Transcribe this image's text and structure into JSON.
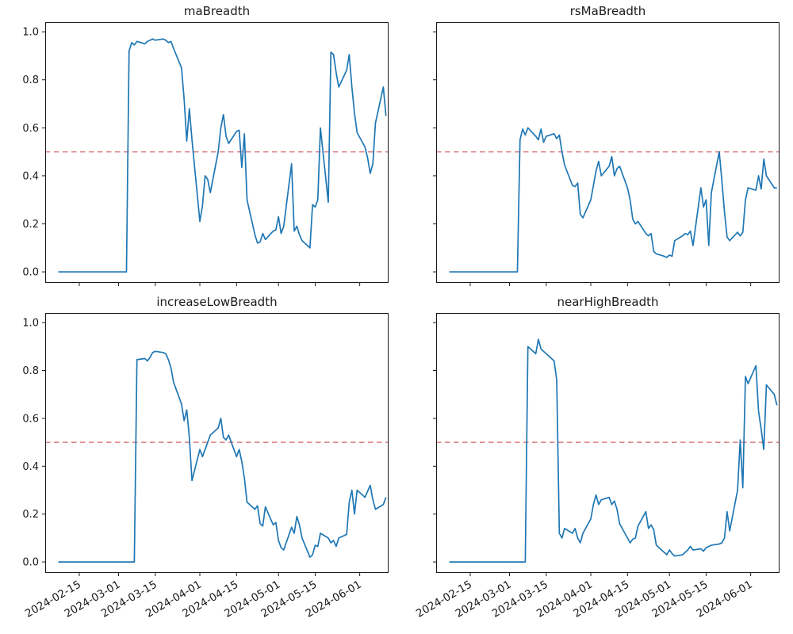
{
  "figure": {
    "background": "#ffffff",
    "text_color": "#1a1a1a"
  },
  "chart_data": {
    "type": "line",
    "layout": "2x2 subplots, shared axes style",
    "grid": false,
    "legend": null,
    "line_color": "#1f77b4",
    "threshold": {
      "value": 0.5,
      "style": "dashed",
      "color": "#d97b7d"
    },
    "ylim": [
      -0.046,
      1.04
    ],
    "xlim": [
      "2024-02-02",
      "2024-06-12"
    ],
    "yticks": {
      "values": [
        0.0,
        0.2,
        0.4,
        0.6,
        0.8,
        1.0
      ],
      "labels": [
        "0.0",
        "0.2",
        "0.4",
        "0.6",
        "0.8",
        "1.0"
      ]
    },
    "xticks": {
      "labels": [
        "2024-02-15",
        "2024-03-01",
        "2024-03-15",
        "2024-04-01",
        "2024-04-15",
        "2024-05-01",
        "2024-05-15",
        "2024-06-01"
      ]
    },
    "x": [
      "2024-02-07",
      "2024-02-08",
      "2024-02-09",
      "2024-02-12",
      "2024-02-13",
      "2024-02-14",
      "2024-02-15",
      "2024-02-16",
      "2024-02-19",
      "2024-02-20",
      "2024-02-21",
      "2024-02-22",
      "2024-02-23",
      "2024-02-26",
      "2024-02-27",
      "2024-02-28",
      "2024-02-29",
      "2024-03-01",
      "2024-03-04",
      "2024-03-05",
      "2024-03-06",
      "2024-03-07",
      "2024-03-08",
      "2024-03-11",
      "2024-03-12",
      "2024-03-13",
      "2024-03-14",
      "2024-03-15",
      "2024-03-18",
      "2024-03-19",
      "2024-03-20",
      "2024-03-21",
      "2024-03-22",
      "2024-03-25",
      "2024-03-26",
      "2024-03-27",
      "2024-03-28",
      "2024-03-29",
      "2024-04-01",
      "2024-04-02",
      "2024-04-03",
      "2024-04-04",
      "2024-04-05",
      "2024-04-08",
      "2024-04-09",
      "2024-04-10",
      "2024-04-11",
      "2024-04-12",
      "2024-04-15",
      "2024-04-16",
      "2024-04-17",
      "2024-04-18",
      "2024-04-19",
      "2024-04-22",
      "2024-04-23",
      "2024-04-24",
      "2024-04-25",
      "2024-04-26",
      "2024-04-29",
      "2024-04-30",
      "2024-05-01",
      "2024-05-02",
      "2024-05-03",
      "2024-05-06",
      "2024-05-07",
      "2024-05-08",
      "2024-05-09",
      "2024-05-10",
      "2024-05-13",
      "2024-05-14",
      "2024-05-15",
      "2024-05-16",
      "2024-05-17",
      "2024-05-20",
      "2024-05-21",
      "2024-05-22",
      "2024-05-23",
      "2024-05-24",
      "2024-05-27",
      "2024-05-28",
      "2024-05-29",
      "2024-05-30",
      "2024-05-31",
      "2024-06-03",
      "2024-06-04",
      "2024-06-05",
      "2024-06-06",
      "2024-06-07",
      "2024-06-10",
      "2024-06-11"
    ],
    "series": [
      {
        "name": "maBreadth",
        "values": [
          0,
          0,
          0,
          0,
          0,
          0,
          0,
          0,
          0,
          0,
          0,
          0,
          0,
          0,
          0,
          0,
          0,
          0,
          0,
          0.92,
          0.955,
          0.945,
          0.96,
          0.95,
          0.96,
          0.965,
          0.97,
          0.965,
          0.97,
          0.965,
          0.955,
          0.96,
          0.93,
          0.85,
          0.72,
          0.545,
          0.68,
          0.55,
          0.21,
          0.275,
          0.4,
          0.385,
          0.33,
          0.5,
          0.6,
          0.655,
          0.565,
          0.535,
          0.585,
          0.59,
          0.435,
          0.575,
          0.3,
          0.155,
          0.12,
          0.125,
          0.16,
          0.135,
          0.17,
          0.175,
          0.23,
          0.16,
          0.19,
          0.45,
          0.17,
          0.19,
          0.155,
          0.13,
          0.1,
          0.28,
          0.27,
          0.3,
          0.6,
          0.29,
          0.915,
          0.905,
          0.83,
          0.77,
          0.84,
          0.905,
          0.77,
          0.66,
          0.58,
          0.52,
          0.475,
          0.41,
          0.45,
          0.62,
          0.77,
          0.65
        ]
      },
      {
        "name": "rsMaBreadth",
        "values": [
          0,
          0,
          0,
          0,
          0,
          0,
          0,
          0,
          0,
          0,
          0,
          0,
          0,
          0,
          0,
          0,
          0,
          0,
          0,
          0.55,
          0.595,
          0.57,
          0.6,
          0.565,
          0.55,
          0.595,
          0.54,
          0.565,
          0.575,
          0.555,
          0.57,
          0.5,
          0.445,
          0.36,
          0.355,
          0.37,
          0.24,
          0.225,
          0.3,
          0.36,
          0.42,
          0.46,
          0.4,
          0.44,
          0.48,
          0.4,
          0.43,
          0.44,
          0.35,
          0.3,
          0.22,
          0.2,
          0.21,
          0.16,
          0.15,
          0.16,
          0.085,
          0.075,
          0.065,
          0.06,
          0.07,
          0.065,
          0.13,
          0.15,
          0.16,
          0.155,
          0.17,
          0.11,
          0.35,
          0.27,
          0.3,
          0.11,
          0.33,
          0.5,
          0.38,
          0.25,
          0.145,
          0.13,
          0.165,
          0.15,
          0.165,
          0.3,
          0.35,
          0.34,
          0.4,
          0.345,
          0.47,
          0.4,
          0.35,
          0.35
        ]
      },
      {
        "name": "increaseLowBreadth",
        "values": [
          0,
          0,
          0,
          0,
          0,
          0,
          0,
          0,
          0,
          0,
          0,
          0,
          0,
          0,
          0,
          0,
          0,
          0,
          0,
          0,
          0,
          0,
          0.845,
          0.85,
          0.84,
          0.855,
          0.875,
          0.88,
          0.875,
          0.87,
          0.845,
          0.81,
          0.75,
          0.66,
          0.59,
          0.635,
          0.52,
          0.34,
          0.47,
          0.44,
          0.47,
          0.5,
          0.53,
          0.56,
          0.6,
          0.52,
          0.51,
          0.53,
          0.44,
          0.47,
          0.42,
          0.35,
          0.25,
          0.22,
          0.235,
          0.16,
          0.15,
          0.23,
          0.155,
          0.165,
          0.09,
          0.06,
          0.05,
          0.145,
          0.12,
          0.19,
          0.155,
          0.1,
          0.02,
          0.03,
          0.07,
          0.065,
          0.12,
          0.1,
          0.08,
          0.09,
          0.065,
          0.1,
          0.115,
          0.25,
          0.3,
          0.2,
          0.3,
          0.27,
          0.295,
          0.32,
          0.26,
          0.22,
          0.24,
          0.27
        ]
      },
      {
        "name": "nearHighBreadth",
        "values": [
          0,
          0,
          0,
          0,
          0,
          0,
          0,
          0,
          0,
          0,
          0,
          0,
          0,
          0,
          0,
          0,
          0,
          0,
          0,
          0,
          0,
          0,
          0.9,
          0.87,
          0.93,
          0.89,
          0.88,
          0.87,
          0.84,
          0.76,
          0.12,
          0.1,
          0.14,
          0.12,
          0.14,
          0.1,
          0.08,
          0.12,
          0.18,
          0.24,
          0.28,
          0.24,
          0.26,
          0.27,
          0.24,
          0.255,
          0.22,
          0.16,
          0.1,
          0.08,
          0.095,
          0.1,
          0.15,
          0.21,
          0.14,
          0.155,
          0.135,
          0.07,
          0.04,
          0.03,
          0.05,
          0.035,
          0.025,
          0.03,
          0.04,
          0.05,
          0.065,
          0.05,
          0.055,
          0.045,
          0.06,
          0.065,
          0.07,
          0.075,
          0.08,
          0.1,
          0.21,
          0.13,
          0.3,
          0.51,
          0.31,
          0.775,
          0.745,
          0.82,
          0.63,
          0.555,
          0.47,
          0.74,
          0.7,
          0.655
        ]
      }
    ]
  }
}
